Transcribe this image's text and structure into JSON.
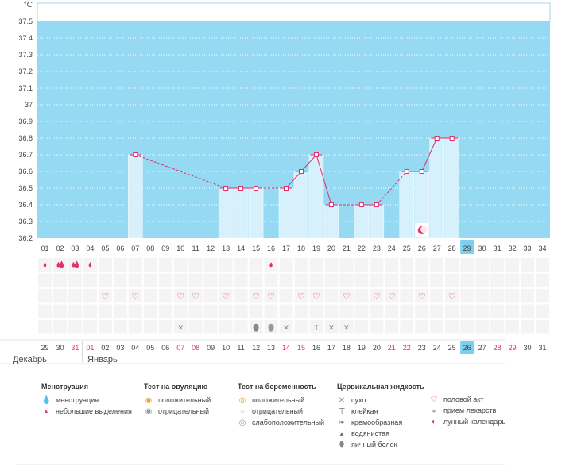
{
  "chart_data": {
    "type": "line",
    "y_unit": "°C",
    "ylim": [
      36.2,
      37.6
    ],
    "y_ticks": [
      "37.5",
      "37.4",
      "37.3",
      "37.2",
      "37.1",
      "37",
      "36.9",
      "36.8",
      "36.7",
      "36.6",
      "36.5",
      "36.4",
      "36.3",
      "36.2"
    ],
    "cycle_days": [
      "01",
      "02",
      "03",
      "04",
      "05",
      "06",
      "07",
      "08",
      "09",
      "10",
      "11",
      "12",
      "13",
      "14",
      "15",
      "16",
      "17",
      "18",
      "19",
      "20",
      "21",
      "22",
      "23",
      "24",
      "25",
      "26",
      "27",
      "28",
      "29",
      "30",
      "31",
      "32",
      "33",
      "34"
    ],
    "today_index": 28,
    "temperatures": [
      null,
      null,
      null,
      null,
      null,
      null,
      36.7,
      null,
      null,
      null,
      null,
      null,
      36.5,
      36.5,
      36.5,
      null,
      36.5,
      36.6,
      36.7,
      36.4,
      null,
      36.4,
      36.4,
      null,
      36.6,
      36.6,
      36.8,
      36.8,
      null,
      null,
      null,
      null,
      null,
      null
    ],
    "measured_points": [
      6,
      12,
      13,
      14,
      16,
      17,
      18,
      19,
      21,
      22,
      24,
      25,
      26,
      27
    ],
    "interpolated_from": [
      6,
      14,
      24
    ],
    "marker_rows": {
      "menstruation": {
        "0": "light",
        "1": "heavy",
        "2": "heavy",
        "3": "light",
        "15": "light"
      },
      "intercourse": [
        4,
        6,
        9,
        10,
        12,
        14,
        15,
        17,
        18,
        20,
        22,
        23,
        25,
        27
      ],
      "pregnancy_test": [],
      "cervical_fluid": {
        "9": "dry",
        "14": "watery",
        "15": "egg-white",
        "16": "dry",
        "18": "sticky",
        "19": "dry",
        "20": "dry"
      },
      "lunar_calendar": [
        25
      ]
    },
    "calendar_dates": [
      "29",
      "30",
      "31",
      "01",
      "02",
      "03",
      "04",
      "05",
      "06",
      "07",
      "08",
      "09",
      "10",
      "11",
      "12",
      "13",
      "14",
      "15",
      "16",
      "17",
      "18",
      "19",
      "20",
      "21",
      "22",
      "23",
      "24",
      "25",
      "26",
      "27",
      "28",
      "29",
      "30",
      "31"
    ],
    "weekend_indices": [
      2,
      3,
      9,
      10,
      16,
      17,
      23,
      24,
      30,
      31
    ],
    "months": [
      {
        "label": "Декабрь",
        "index": 0
      },
      {
        "label": "Январь",
        "index": 3
      }
    ]
  },
  "legend": {
    "groups": [
      {
        "title": "Менструация",
        "items": [
          {
            "icon": "drop-heavy-icon",
            "label": "менструация"
          },
          {
            "icon": "drop-light-icon",
            "label": "небольшие выделения"
          }
        ]
      },
      {
        "title": "Тест на овуляцию",
        "items": [
          {
            "icon": "ovulation-positive-icon",
            "label": "положительный"
          },
          {
            "icon": "ovulation-negative-icon",
            "label": "отрицательный"
          }
        ]
      },
      {
        "title": "Тест на беременность",
        "items": [
          {
            "icon": "pregnancy-positive-icon",
            "label": "положительный"
          },
          {
            "icon": "pregnancy-negative-icon",
            "label": "отрицательный"
          },
          {
            "icon": "pregnancy-weak-icon",
            "label": "слабоположительный"
          }
        ]
      },
      {
        "title": "Цервикальная жидкость",
        "items": [
          {
            "icon": "dry-icon",
            "label": "сухо"
          },
          {
            "icon": "sticky-icon",
            "label": "клейкая"
          },
          {
            "icon": "creamy-icon",
            "label": "кремообразная"
          },
          {
            "icon": "watery-icon",
            "label": "водянистая"
          },
          {
            "icon": "egg-white-icon",
            "label": "яичный белок"
          }
        ]
      },
      {
        "title": "",
        "items": [
          {
            "icon": "heart-icon",
            "label": "половой акт"
          },
          {
            "icon": "pill-icon",
            "label": "прием лекарств"
          },
          {
            "icon": "moon-icon",
            "label": "лунный календарь"
          }
        ]
      }
    ]
  },
  "colors": {
    "plot_bg": "#95d9f3",
    "bar_fill": "#d6f0fc",
    "line": "#e0306e",
    "weekend": "#e0306e",
    "today_bg": "#7ccfee"
  }
}
